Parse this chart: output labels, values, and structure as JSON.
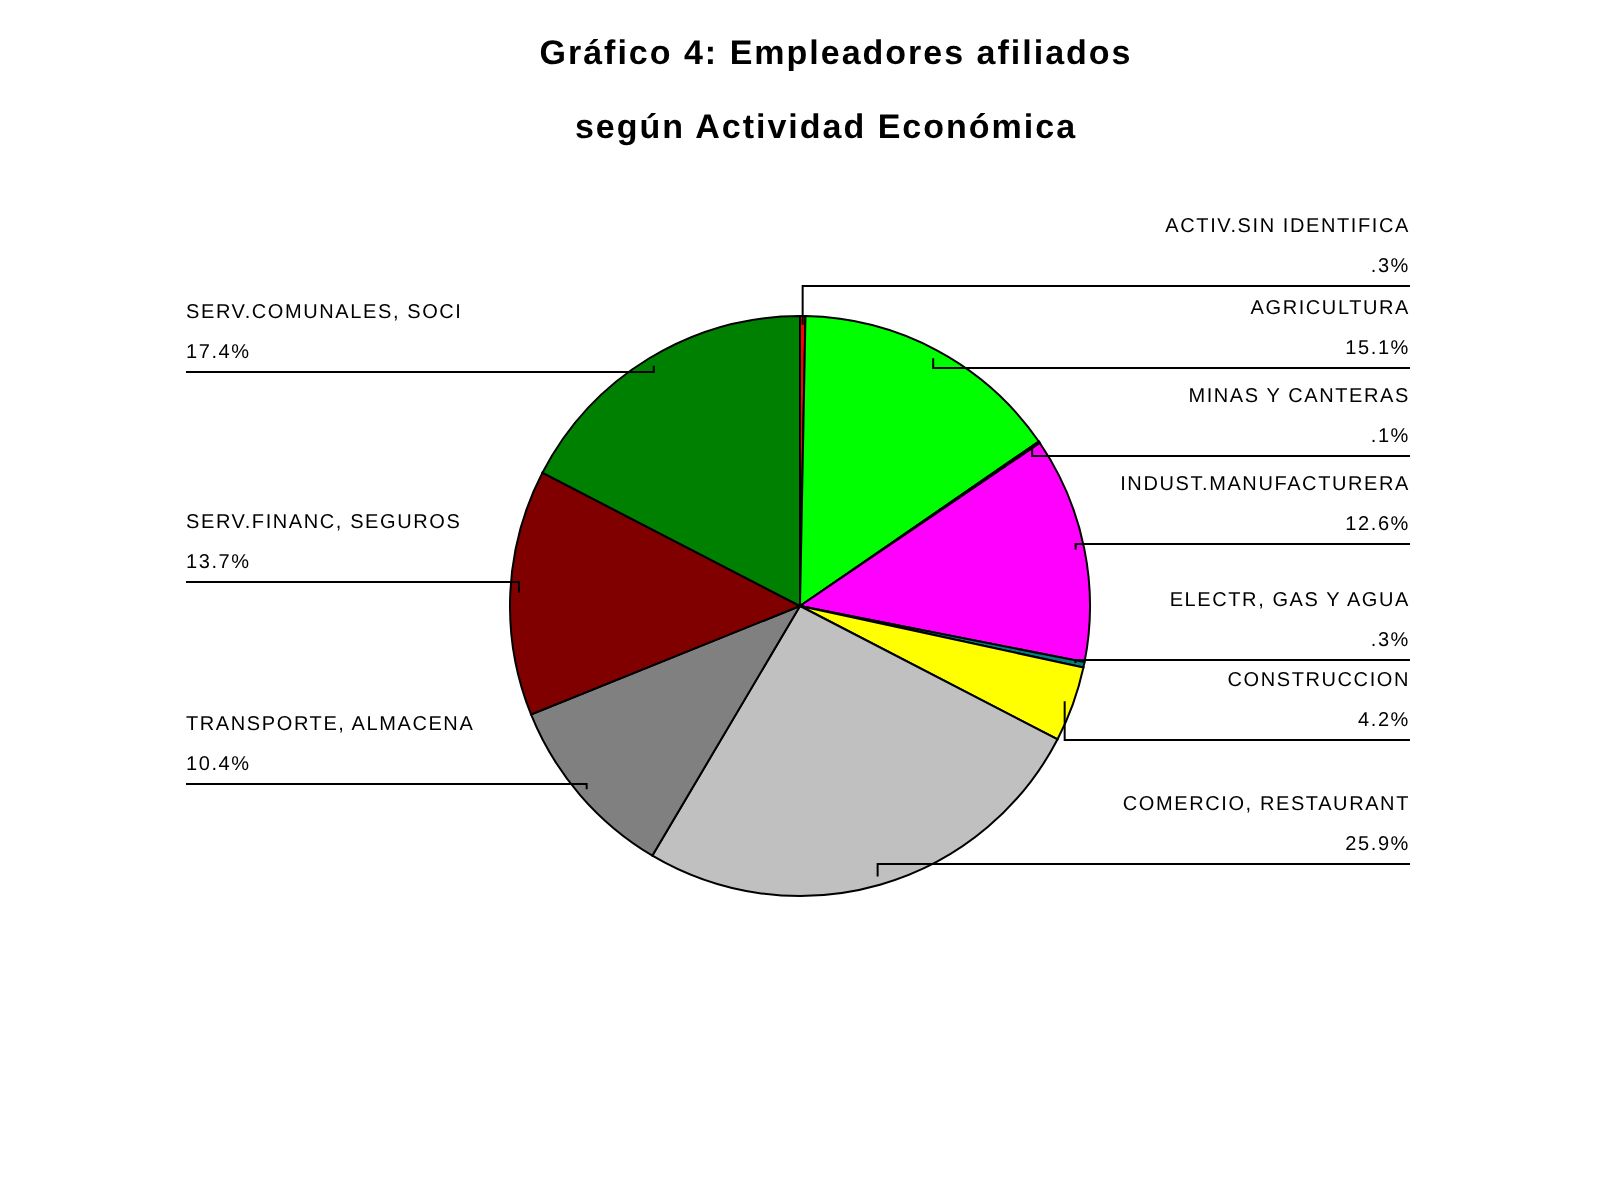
{
  "chart_data": {
    "type": "pie",
    "title": "Gráfico 4: Empleadores afiliados",
    "subtitle": "según Actividad Económica",
    "categories": [
      "ACTIV.SIN IDENTIFICA",
      "AGRICULTURA",
      "MINAS Y CANTERAS",
      "INDUST.MANUFACTURERA",
      "ELECTR, GAS Y AGUA",
      "CONSTRUCCION",
      "COMERCIO, RESTAURANT",
      "TRANSPORTE, ALMACENA",
      "SERV.FINANC, SEGUROS",
      "SERV.COMUNALES, SOCI"
    ],
    "values": [
      0.3,
      15.1,
      0.1,
      12.6,
      0.3,
      4.2,
      25.9,
      10.4,
      13.7,
      17.4
    ],
    "value_labels": [
      ".3%",
      "15.1%",
      ".1%",
      "12.6%",
      ".3%",
      "4.2%",
      "25.9%",
      "10.4%",
      "13.7%",
      "17.4%"
    ],
    "colors": [
      "#ff0000",
      "#00ff00",
      "#0000ff",
      "#ff00ff",
      "#008080",
      "#ffff00",
      "#c0c0c0",
      "#808080",
      "#800000",
      "#008000"
    ]
  }
}
